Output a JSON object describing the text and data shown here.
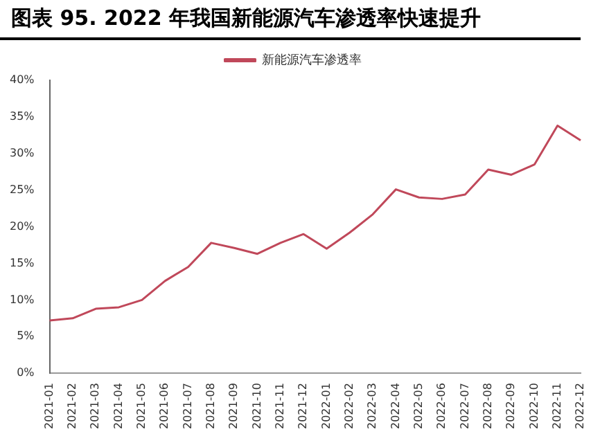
{
  "chart_data": {
    "type": "line",
    "title": "图表 95. 2022 年我国新能源汽车渗透率快速提升",
    "categories": [
      "2021-01",
      "2021-02",
      "2021-03",
      "2021-04",
      "2021-05",
      "2021-06",
      "2021-07",
      "2021-08",
      "2021-09",
      "2021-10",
      "2021-11",
      "2021-12",
      "2022-01",
      "2022-02",
      "2022-03",
      "2022-04",
      "2022-05",
      "2022-06",
      "2022-07",
      "2022-08",
      "2022-09",
      "2022-10",
      "2022-11",
      "2022-12"
    ],
    "series": [
      {
        "name": "新能源汽车渗透率",
        "color": "#c0485a",
        "values": [
          7.2,
          7.5,
          8.8,
          9.0,
          10.0,
          12.6,
          14.5,
          17.8,
          17.1,
          16.3,
          17.8,
          19.0,
          17.0,
          19.2,
          21.7,
          25.1,
          24.0,
          23.8,
          24.4,
          27.8,
          27.1,
          28.5,
          33.8,
          31.8
        ]
      }
    ],
    "ylim": [
      0,
      40
    ],
    "yticks": [
      {
        "value": 0,
        "label": "0%"
      },
      {
        "value": 5,
        "label": "5%"
      },
      {
        "value": 10,
        "label": "10%"
      },
      {
        "value": 15,
        "label": "15%"
      },
      {
        "value": 20,
        "label": "20%"
      },
      {
        "value": 25,
        "label": "25%"
      },
      {
        "value": 30,
        "label": "30%"
      },
      {
        "value": 35,
        "label": "35%"
      },
      {
        "value": 40,
        "label": "40%"
      }
    ],
    "grid": false,
    "legend": "top",
    "marker": "none",
    "line_style": "solid"
  }
}
